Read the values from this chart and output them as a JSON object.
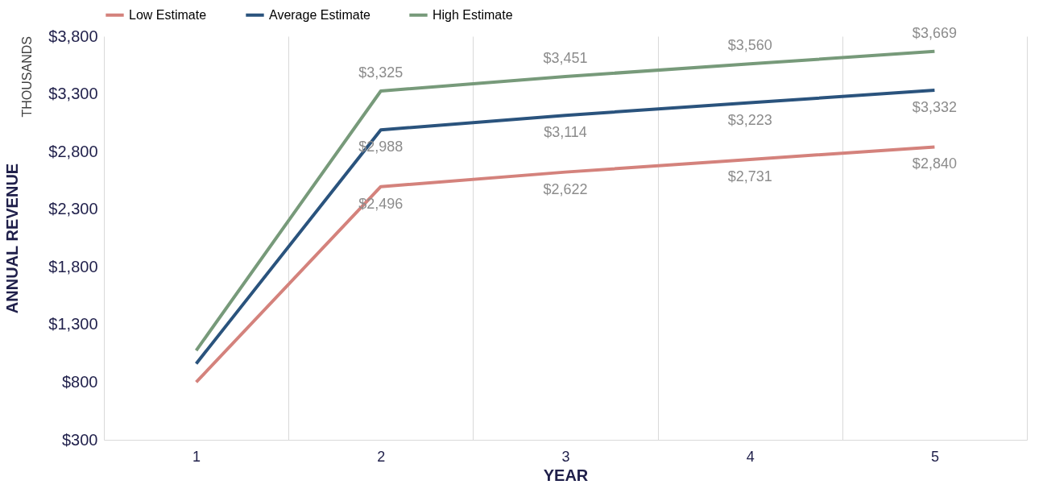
{
  "chart_data": {
    "type": "line",
    "xlabel": "YEAR",
    "ylabel": "ANNUAL REVENUE",
    "annotations": [
      "THOUSANDS"
    ],
    "categories": [
      "1",
      "2",
      "3",
      "4",
      "5"
    ],
    "series": [
      {
        "name": "Low Estimate",
        "color": "#d4827c",
        "values": [
          800,
          2496,
          2622,
          2731,
          2840
        ],
        "value_labels": [
          null,
          "$2,496",
          "$2,622",
          "$2,731",
          "$2,840"
        ]
      },
      {
        "name": "Average Estimate",
        "color": "#2a537d",
        "values": [
          960,
          2988,
          3114,
          3223,
          3332
        ],
        "value_labels": [
          null,
          "$2,988",
          "$3,114",
          "$3,223",
          "$3,332"
        ]
      },
      {
        "name": "High Estimate",
        "color": "#779a7a",
        "values": [
          1075,
          3325,
          3451,
          3560,
          3669
        ],
        "value_labels": [
          null,
          "$3,325",
          "$3,451",
          "$3,560",
          "$3,669"
        ]
      }
    ],
    "ylim": [
      300,
      3800
    ],
    "yticks": [
      {
        "value": 300,
        "label": "$300"
      },
      {
        "value": 800,
        "label": "$800"
      },
      {
        "value": 1300,
        "label": "$1,300"
      },
      {
        "value": 1800,
        "label": "$1,800"
      },
      {
        "value": 2300,
        "label": "$2,300"
      },
      {
        "value": 2800,
        "label": "$2,800"
      },
      {
        "value": 3300,
        "label": "$3,300"
      },
      {
        "value": 3800,
        "label": "$3,800"
      }
    ],
    "grid": "x",
    "legend": "top",
    "marker": "none",
    "line_style": "solid"
  }
}
